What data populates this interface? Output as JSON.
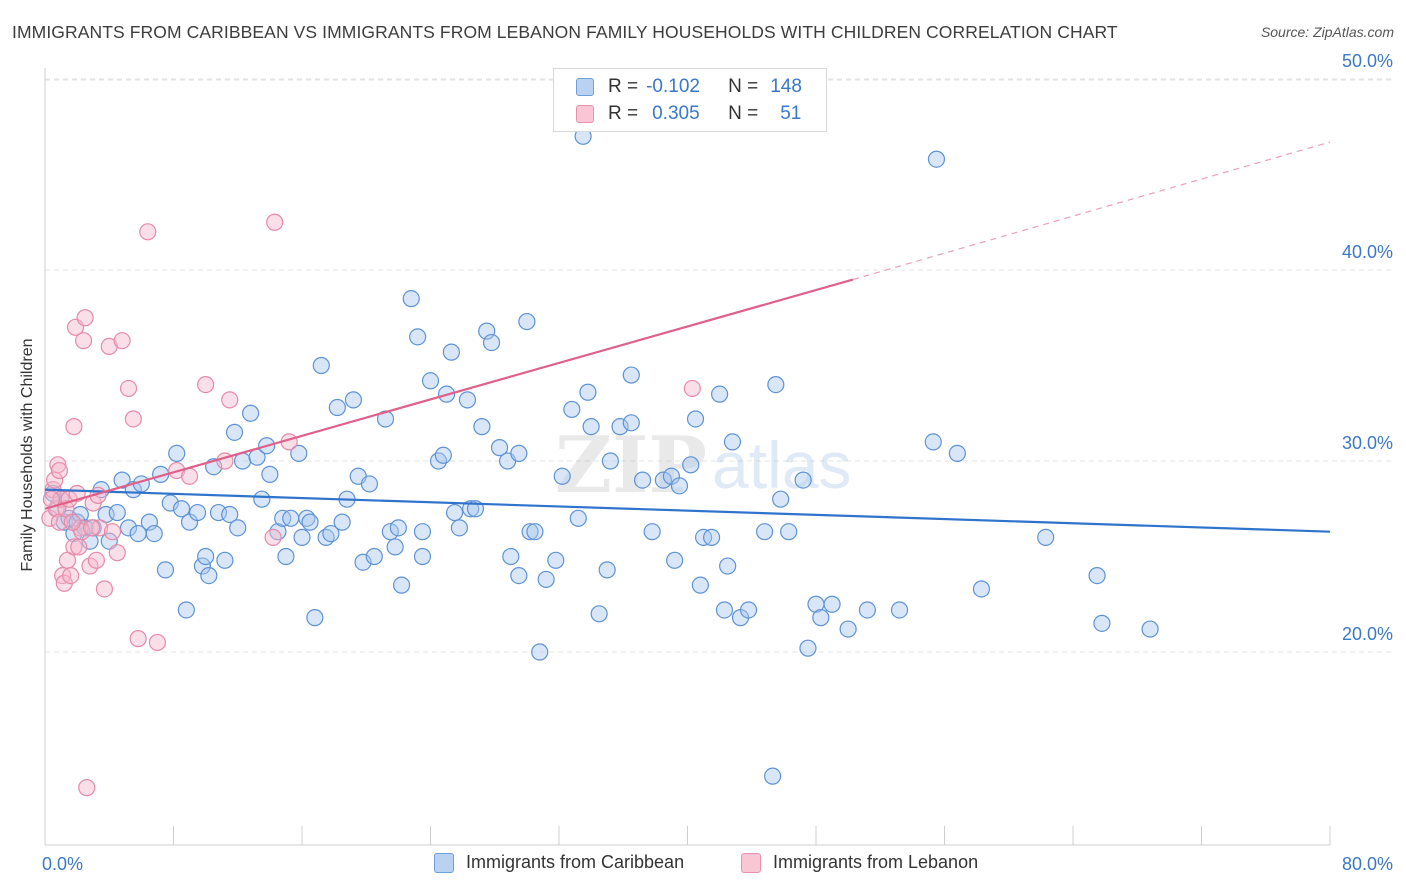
{
  "title": "IMMIGRANTS FROM CARIBBEAN VS IMMIGRANTS FROM LEBANON FAMILY HOUSEHOLDS WITH CHILDREN CORRELATION CHART",
  "source": "Source: ZipAtlas.com",
  "watermark": {
    "zip": "ZIP",
    "atlas": "atlas"
  },
  "legend": {
    "rows": [
      {
        "r_label": "R =",
        "r_value": "-0.102",
        "n_label": "N =",
        "n_value": "148"
      },
      {
        "r_label": "R =",
        "r_value": "0.305",
        "n_label": "N =",
        "n_value": "51"
      }
    ]
  },
  "bottom_legend": {
    "caribbean": "Immigrants from Caribbean",
    "lebanon": "Immigrants from Lebanon"
  },
  "chart_data": {
    "type": "scatter",
    "title": "IMMIGRANTS FROM CARIBBEAN VS IMMIGRANTS FROM LEBANON FAMILY HOUSEHOLDS WITH CHILDREN CORRELATION CHART",
    "xlabel": "",
    "ylabel": "Family Households with Children",
    "xlim": [
      0,
      80
    ],
    "ylim": [
      10,
      52
    ],
    "x_tick_labels": [
      "0.0%",
      "80.0%"
    ],
    "y_ticks": [
      20,
      30,
      40,
      50
    ],
    "y_tick_labels": [
      "20.0%",
      "30.0%",
      "40.0%",
      "50.0%"
    ],
    "colors": {
      "caribbean_fill": "#a9c8ee",
      "caribbean_stroke": "#5d93d6",
      "caribbean_line": "#2f73cc",
      "lebanon_fill": "#f6b9cc",
      "lebanon_stroke": "#e68aa8",
      "lebanon_line": "#e0608a",
      "tick_label": "#3a78c8",
      "grid": "#e3e3e3"
    },
    "series": [
      {
        "name": "Immigrants from Caribbean",
        "R": -0.102,
        "N": 148,
        "trend": {
          "x": [
            0,
            80
          ],
          "y": [
            28.5,
            26.3
          ],
          "dashed_to": null
        },
        "points": [
          [
            0.5,
            28.3
          ],
          [
            0.8,
            27.5
          ],
          [
            1.0,
            28.0
          ],
          [
            1.2,
            26.8
          ],
          [
            1.5,
            27.0
          ],
          [
            1.8,
            26.2
          ],
          [
            2.0,
            26.8
          ],
          [
            2.2,
            27.2
          ],
          [
            2.5,
            26.5
          ],
          [
            2.8,
            25.8
          ],
          [
            3.0,
            26.5
          ],
          [
            3.5,
            28.5
          ],
          [
            3.8,
            27.2
          ],
          [
            4.0,
            25.8
          ],
          [
            4.5,
            27.3
          ],
          [
            4.8,
            29.0
          ],
          [
            5.2,
            26.5
          ],
          [
            5.5,
            28.5
          ],
          [
            5.8,
            26.2
          ],
          [
            6.0,
            28.8
          ],
          [
            6.5,
            26.8
          ],
          [
            6.8,
            26.2
          ],
          [
            7.2,
            29.3
          ],
          [
            7.5,
            24.3
          ],
          [
            7.8,
            27.8
          ],
          [
            8.2,
            30.4
          ],
          [
            8.5,
            27.5
          ],
          [
            8.8,
            22.2
          ],
          [
            9.0,
            26.8
          ],
          [
            9.5,
            27.3
          ],
          [
            9.8,
            24.5
          ],
          [
            10.2,
            24.0
          ],
          [
            10.5,
            29.7
          ],
          [
            10.8,
            27.3
          ],
          [
            11.2,
            24.8
          ],
          [
            11.5,
            27.2
          ],
          [
            11.8,
            31.5
          ],
          [
            12.0,
            26.5
          ],
          [
            12.3,
            30.0
          ],
          [
            12.8,
            32.5
          ],
          [
            13.2,
            30.2
          ],
          [
            13.5,
            28.0
          ],
          [
            13.8,
            30.8
          ],
          [
            14.0,
            29.3
          ],
          [
            14.5,
            26.3
          ],
          [
            14.8,
            27.0
          ],
          [
            15.0,
            25.0
          ],
          [
            15.3,
            27.0
          ],
          [
            15.8,
            30.4
          ],
          [
            16.0,
            26.0
          ],
          [
            16.3,
            27.0
          ],
          [
            16.5,
            26.8
          ],
          [
            16.8,
            21.8
          ],
          [
            17.2,
            35.0
          ],
          [
            17.5,
            26.0
          ],
          [
            17.8,
            26.2
          ],
          [
            18.2,
            32.8
          ],
          [
            18.5,
            26.8
          ],
          [
            18.8,
            28.0
          ],
          [
            19.2,
            33.2
          ],
          [
            19.5,
            29.2
          ],
          [
            19.8,
            24.7
          ],
          [
            20.2,
            28.8
          ],
          [
            20.5,
            25.0
          ],
          [
            21.2,
            32.2
          ],
          [
            21.5,
            26.3
          ],
          [
            21.8,
            25.5
          ],
          [
            22.0,
            26.5
          ],
          [
            22.2,
            23.5
          ],
          [
            22.8,
            38.5
          ],
          [
            23.2,
            36.5
          ],
          [
            23.5,
            26.3
          ],
          [
            23.5,
            25.0
          ],
          [
            24.0,
            34.2
          ],
          [
            24.5,
            30.0
          ],
          [
            24.8,
            30.3
          ],
          [
            25.0,
            33.5
          ],
          [
            25.3,
            35.7
          ],
          [
            25.5,
            27.3
          ],
          [
            25.8,
            26.5
          ],
          [
            26.3,
            33.2
          ],
          [
            26.5,
            27.5
          ],
          [
            26.8,
            27.5
          ],
          [
            27.2,
            31.8
          ],
          [
            27.5,
            36.8
          ],
          [
            27.8,
            36.2
          ],
          [
            28.3,
            30.7
          ],
          [
            28.8,
            30.0
          ],
          [
            29.0,
            25.0
          ],
          [
            29.5,
            30.4
          ],
          [
            29.5,
            24.0
          ],
          [
            30.0,
            37.3
          ],
          [
            30.2,
            26.3
          ],
          [
            30.5,
            26.3
          ],
          [
            30.8,
            20.0
          ],
          [
            31.2,
            23.8
          ],
          [
            31.8,
            24.8
          ],
          [
            32.2,
            29.2
          ],
          [
            32.8,
            32.7
          ],
          [
            33.2,
            27.0
          ],
          [
            33.5,
            47.0
          ],
          [
            33.8,
            33.6
          ],
          [
            34.0,
            31.8
          ],
          [
            34.5,
            22.0
          ],
          [
            35.0,
            24.3
          ],
          [
            35.2,
            30.0
          ],
          [
            35.8,
            31.8
          ],
          [
            36.5,
            32.0
          ],
          [
            36.5,
            34.5
          ],
          [
            37.2,
            29.0
          ],
          [
            37.8,
            26.3
          ],
          [
            38.5,
            29.0
          ],
          [
            39.0,
            29.2
          ],
          [
            39.2,
            24.8
          ],
          [
            39.5,
            28.7
          ],
          [
            40.2,
            29.8
          ],
          [
            40.5,
            32.2
          ],
          [
            40.8,
            23.5
          ],
          [
            41.0,
            26.0
          ],
          [
            41.5,
            26.0
          ],
          [
            42.0,
            33.5
          ],
          [
            42.3,
            22.2
          ],
          [
            42.5,
            24.5
          ],
          [
            42.8,
            31.0
          ],
          [
            43.3,
            21.8
          ],
          [
            43.8,
            22.2
          ],
          [
            44.8,
            26.3
          ],
          [
            45.5,
            34.0
          ],
          [
            45.8,
            28.0
          ],
          [
            46.3,
            26.3
          ],
          [
            47.2,
            29.0
          ],
          [
            47.5,
            20.2
          ],
          [
            48.0,
            22.5
          ],
          [
            48.3,
            21.8
          ],
          [
            49.0,
            22.5
          ],
          [
            50.0,
            21.2
          ],
          [
            51.2,
            22.2
          ],
          [
            53.2,
            22.2
          ],
          [
            55.3,
            31.0
          ],
          [
            55.5,
            45.8
          ],
          [
            56.8,
            30.4
          ],
          [
            58.3,
            23.3
          ],
          [
            62.3,
            26.0
          ],
          [
            65.5,
            24.0
          ],
          [
            65.8,
            21.5
          ],
          [
            68.8,
            21.2
          ],
          [
            45.3,
            13.5
          ],
          [
            10.0,
            25.0
          ]
        ]
      },
      {
        "name": "Immigrants from Lebanon",
        "R": 0.305,
        "N": 51,
        "trend": {
          "x": [
            0,
            50.3
          ],
          "y": [
            27.5,
            39.5
          ],
          "dashed_to": [
            80,
            46.7
          ]
        },
        "points": [
          [
            0.3,
            27.0
          ],
          [
            0.5,
            28.5
          ],
          [
            0.6,
            29.0
          ],
          [
            0.7,
            27.5
          ],
          [
            0.8,
            29.8
          ],
          [
            0.9,
            26.8
          ],
          [
            1.0,
            28.0
          ],
          [
            1.1,
            24.0
          ],
          [
            1.2,
            23.6
          ],
          [
            1.3,
            27.5
          ],
          [
            1.4,
            24.8
          ],
          [
            1.5,
            28.0
          ],
          [
            1.6,
            24.0
          ],
          [
            1.8,
            25.5
          ],
          [
            1.8,
            31.8
          ],
          [
            1.9,
            37.0
          ],
          [
            2.0,
            28.3
          ],
          [
            2.1,
            25.5
          ],
          [
            2.2,
            26.5
          ],
          [
            2.3,
            26.3
          ],
          [
            2.4,
            36.3
          ],
          [
            2.5,
            37.5
          ],
          [
            2.8,
            24.5
          ],
          [
            3.0,
            27.8
          ],
          [
            3.2,
            24.8
          ],
          [
            3.4,
            26.5
          ],
          [
            3.7,
            23.3
          ],
          [
            4.0,
            36.0
          ],
          [
            4.2,
            26.3
          ],
          [
            4.5,
            25.2
          ],
          [
            4.8,
            36.3
          ],
          [
            5.2,
            33.8
          ],
          [
            5.5,
            32.2
          ],
          [
            5.8,
            20.7
          ],
          [
            6.4,
            42.0
          ],
          [
            7.0,
            20.5
          ],
          [
            8.2,
            29.5
          ],
          [
            9.0,
            29.2
          ],
          [
            10.0,
            34.0
          ],
          [
            11.2,
            30.0
          ],
          [
            11.5,
            33.2
          ],
          [
            14.2,
            26.0
          ],
          [
            14.3,
            42.5
          ],
          [
            15.2,
            31.0
          ],
          [
            40.3,
            33.8
          ],
          [
            2.6,
            12.9
          ],
          [
            0.4,
            28.0
          ],
          [
            1.7,
            26.8
          ],
          [
            2.9,
            26.5
          ],
          [
            3.3,
            28.2
          ],
          [
            0.9,
            29.5
          ]
        ]
      }
    ]
  }
}
